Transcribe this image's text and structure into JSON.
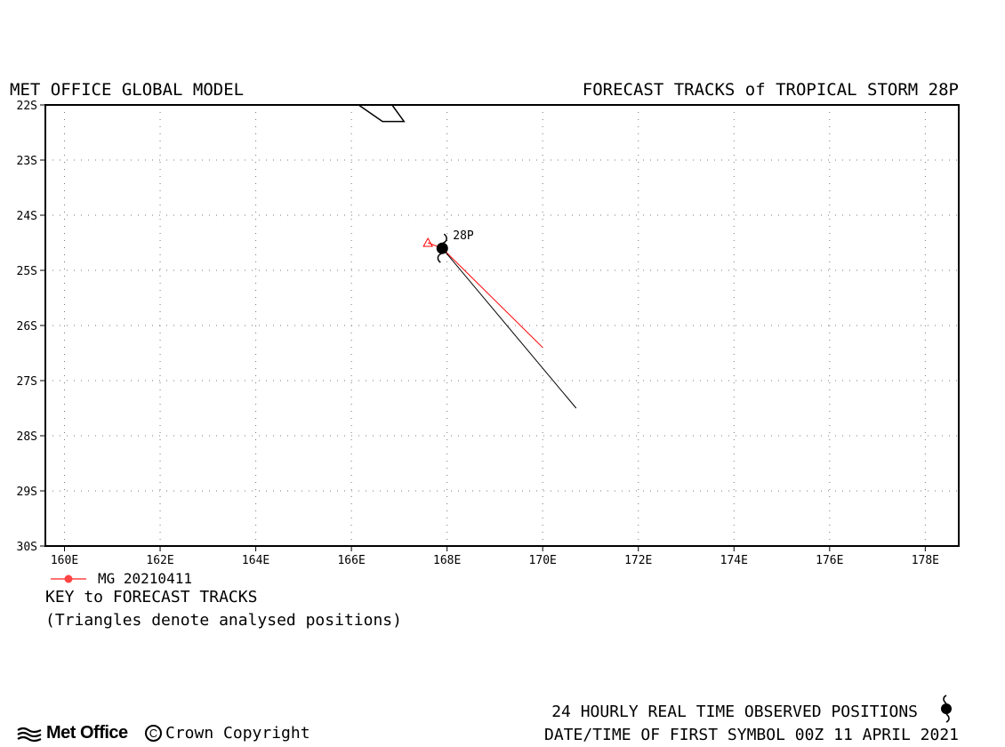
{
  "header": {
    "left_title": "MET OFFICE GLOBAL MODEL",
    "right_title": "FORECAST TRACKS of TROPICAL STORM 28P"
  },
  "map": {
    "lon_range": [
      159.6,
      178.7
    ],
    "lat_range": [
      -30,
      -22
    ],
    "lon_labels": [
      "160E",
      "162E",
      "164E",
      "166E",
      "168E",
      "170E",
      "172E",
      "174E",
      "176E",
      "178E"
    ],
    "lat_labels": [
      "22S",
      "23S",
      "24S",
      "25S",
      "26S",
      "27S",
      "28S",
      "29S",
      "30S"
    ],
    "grid": "dotted",
    "colors": {
      "forecast_track": "#ff0000",
      "observed_track": "#000000",
      "coast": "#000000"
    },
    "storm": {
      "label": "28P",
      "position": {
        "lon": 167.9,
        "lat": -24.6
      },
      "icon": "tropical-storm-symbol-icon"
    },
    "forecast_track": [
      {
        "lon": 167.6,
        "lat": -24.5
      },
      {
        "lon": 167.9,
        "lat": -24.6
      },
      {
        "lon": 170.0,
        "lat": -26.4
      }
    ],
    "analysed_position": {
      "lon": 167.6,
      "lat": -24.5
    },
    "observed_track": [
      {
        "lon": 167.9,
        "lat": -24.6
      },
      {
        "lon": 170.7,
        "lat": -27.5
      }
    ],
    "coastline": [
      {
        "lon": 166.15,
        "lat": -22.0
      },
      {
        "lon": 166.65,
        "lat": -22.3
      },
      {
        "lon": 167.1,
        "lat": -22.3
      },
      {
        "lon": 166.85,
        "lat": -22.0
      }
    ]
  },
  "key": {
    "series_label": "MG 20210411",
    "series_color": "#ff4444",
    "title": "KEY to FORECAST TRACKS",
    "note": "(Triangles denote analysed positions)"
  },
  "footer": {
    "observed_text": "24 HOURLY REAL TIME OBSERVED POSITIONS",
    "datetime_text": "DATE/TIME OF FIRST SYMBOL 00Z 11 APRIL 2021",
    "logo_text": "Met Office",
    "copyright_text": "Crown Copyright",
    "copyright_symbol": "C"
  }
}
